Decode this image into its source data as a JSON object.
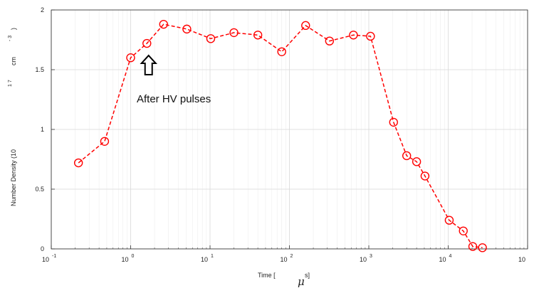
{
  "chart_data": {
    "type": "scatter",
    "xscale": "log",
    "xlim": [
      0.1,
      100000
    ],
    "ylim": [
      0,
      2
    ],
    "grid": true,
    "x_ticks": [
      {
        "base": "10",
        "exp": "-1"
      },
      {
        "base": "10",
        "exp": "0"
      },
      {
        "base": "10",
        "exp": "1"
      },
      {
        "base": "10",
        "exp": "2"
      },
      {
        "base": "10",
        "exp": "3"
      },
      {
        "base": "10",
        "exp": "4"
      },
      {
        "base": "10",
        "exp": ""
      }
    ],
    "y_ticks": [
      "0",
      "0.5",
      "1",
      "1.5",
      "2"
    ],
    "xlabel": {
      "prefix": "Time [",
      "mu": "μ",
      "suffix": "s]"
    },
    "ylabel": {
      "main": "Number Density (10",
      "exp": "1 7",
      "unit": "cm",
      "unit_exp": "- 3",
      "close": ")"
    },
    "series": [
      {
        "color": "#ff0000",
        "marker": "circle",
        "linestyle": "dashed",
        "x": [
          0.22,
          0.47,
          1.0,
          1.6,
          2.6,
          5.1,
          10.2,
          20,
          40,
          80,
          160,
          320,
          640,
          1050,
          2050,
          3000,
          4000,
          5100,
          10300,
          15500,
          20400,
          27000
        ],
        "y": [
          0.72,
          0.9,
          1.6,
          1.72,
          1.88,
          1.84,
          1.76,
          1.81,
          1.79,
          1.65,
          1.87,
          1.74,
          1.79,
          1.78,
          1.06,
          0.78,
          0.73,
          0.61,
          0.24,
          0.15,
          0.02,
          0.01
        ]
      }
    ],
    "annotations": [
      {
        "text": "After HV pulses",
        "arrow": "up",
        "x": 1.55,
        "y": 1.72
      }
    ]
  }
}
